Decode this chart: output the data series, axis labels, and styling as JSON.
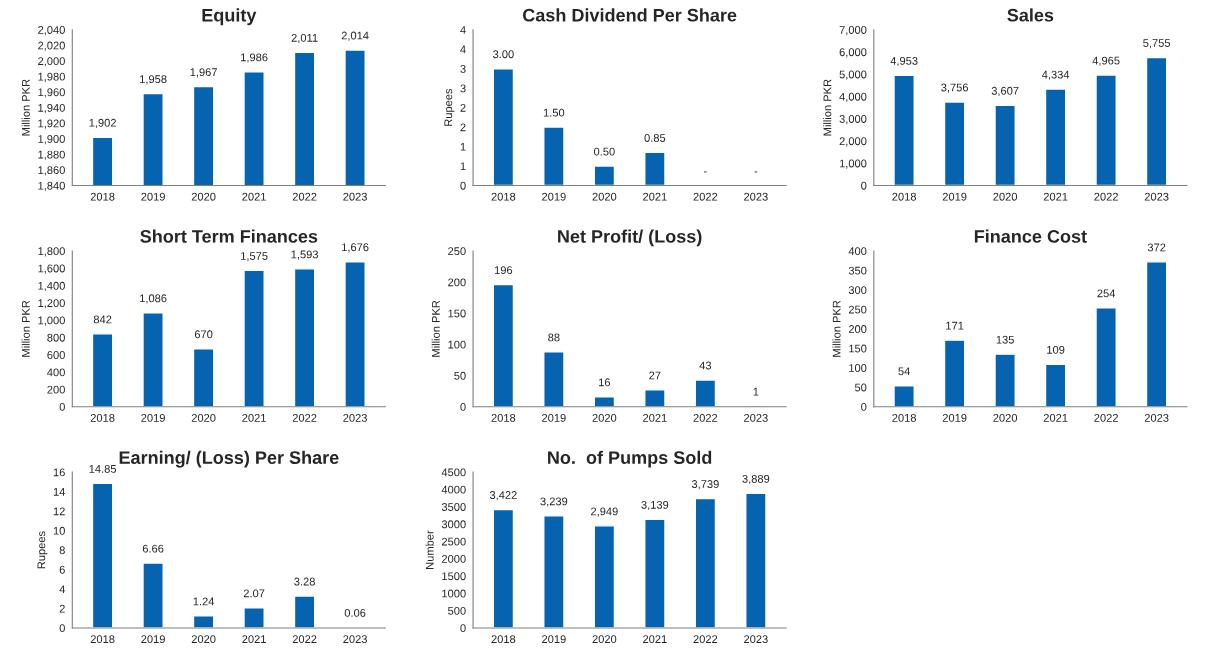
{
  "chart_data": [
    {
      "type": "bar",
      "title": "Equity",
      "ylabel": "Million PKR",
      "categories": [
        "2018",
        "2019",
        "2020",
        "2021",
        "2022",
        "2023"
      ],
      "values": [
        1902,
        1958,
        1967,
        1986,
        2011,
        2014
      ],
      "value_labels": [
        "1,902",
        "1,958",
        "1,967",
        "1,986",
        "2,011",
        "2,014"
      ],
      "color": "#0563b0",
      "ylim": [
        1840,
        2040
      ],
      "yticks": [
        {
          "value": 1840,
          "label": "1,840"
        },
        {
          "value": 1860,
          "label": "1,860"
        },
        {
          "value": 1880,
          "label": "1,880"
        },
        {
          "value": 1900,
          "label": "1,900"
        },
        {
          "value": 1920,
          "label": "1,920"
        },
        {
          "value": 1940,
          "label": "1,940"
        },
        {
          "value": 1960,
          "label": "1,960"
        },
        {
          "value": 1980,
          "label": "1,980"
        },
        {
          "value": 2000,
          "label": "2,000"
        },
        {
          "value": 2020,
          "label": "2,020"
        },
        {
          "value": 2040,
          "label": "2,040"
        }
      ],
      "grid": false,
      "legend": false
    },
    {
      "type": "bar",
      "title": "Cash Dividend Per Share",
      "ylabel": "Rupees",
      "categories": [
        "2018",
        "2019",
        "2020",
        "2021",
        "2022",
        "2023"
      ],
      "values": [
        3.0,
        1.5,
        0.5,
        0.85,
        null,
        null
      ],
      "value_labels": [
        "3.00",
        "1.50",
        "0.50",
        "0.85",
        "-",
        "-"
      ],
      "color": "#0563b0",
      "ylim": [
        0,
        4
      ],
      "yticks": [
        0,
        {
          "value": 0.5,
          "label": "1"
        },
        1,
        {
          "value": 1.5,
          "label": "2"
        },
        2,
        {
          "value": 2.5,
          "label": "3"
        },
        3,
        {
          "value": 3.5,
          "label": "4"
        },
        4
      ],
      "grid": false,
      "legend": false
    },
    {
      "type": "bar",
      "title": "Sales",
      "ylabel": "Million PKR",
      "categories": [
        "2018",
        "2019",
        "2020",
        "2021",
        "2022",
        "2023"
      ],
      "values": [
        4953,
        3756,
        3607,
        4334,
        4965,
        5755
      ],
      "value_labels": [
        "4,953",
        "3,756",
        "3,607",
        "4,334",
        "4,965",
        "5,755"
      ],
      "color": "#0563b0",
      "ylim": [
        0,
        7000
      ],
      "yticks": [
        0,
        {
          "value": 1000,
          "label": "1,000"
        },
        {
          "value": 2000,
          "label": "2,000"
        },
        {
          "value": 3000,
          "label": "3,000"
        },
        {
          "value": 4000,
          "label": "4,000"
        },
        {
          "value": 5000,
          "label": "5,000"
        },
        {
          "value": 6000,
          "label": "6,000"
        },
        {
          "value": 7000,
          "label": "7,000"
        }
      ],
      "grid": false,
      "legend": false
    },
    {
      "type": "bar",
      "title": "Short Term Finances",
      "ylabel": "Million PKR",
      "categories": [
        "2018",
        "2019",
        "2020",
        "2021",
        "2022",
        "2023"
      ],
      "values": [
        842,
        1086,
        670,
        1575,
        1593,
        1676
      ],
      "value_labels": [
        "842",
        "1,086",
        "670",
        "1,575",
        "1,593",
        "1,676"
      ],
      "color": "#0563b0",
      "ylim": [
        0,
        1800
      ],
      "yticks": [
        0,
        200,
        400,
        600,
        800,
        {
          "value": 1000,
          "label": "1,000"
        },
        {
          "value": 1200,
          "label": "1,200"
        },
        {
          "value": 1400,
          "label": "1,400"
        },
        {
          "value": 1600,
          "label": "1,600"
        },
        {
          "value": 1800,
          "label": "1,800"
        }
      ],
      "grid": false,
      "legend": false
    },
    {
      "type": "bar",
      "title": "Net Profit/ (Loss)",
      "ylabel": "Million PKR",
      "categories": [
        "2018",
        "2019",
        "2020",
        "2021",
        "2022",
        "2023"
      ],
      "values": [
        196,
        88,
        16,
        27,
        43,
        1
      ],
      "value_labels": [
        "196",
        "88",
        "16",
        "27",
        "43",
        "1"
      ],
      "color": "#0563b0",
      "ylim": [
        0,
        250
      ],
      "yticks": [
        0,
        50,
        100,
        150,
        200,
        250
      ],
      "grid": false,
      "legend": false
    },
    {
      "type": "bar",
      "title": "Finance Cost",
      "ylabel": "Million PKR",
      "categories": [
        "2018",
        "2019",
        "2020",
        "2021",
        "2022",
        "2023"
      ],
      "values": [
        54,
        171,
        135,
        109,
        254,
        372
      ],
      "value_labels": [
        "54",
        "171",
        "135",
        "109",
        "254",
        "372"
      ],
      "color": "#0563b0",
      "ylim": [
        0,
        400
      ],
      "yticks": [
        0,
        50,
        100,
        150,
        200,
        250,
        300,
        350,
        400
      ],
      "grid": false,
      "legend": false
    },
    {
      "type": "bar",
      "title": "Earning/ (Loss) Per Share",
      "ylabel": "Rupees",
      "categories": [
        "2018",
        "2019",
        "2020",
        "2021",
        "2022",
        "2023"
      ],
      "values": [
        14.85,
        6.66,
        1.24,
        2.07,
        3.28,
        0.06
      ],
      "value_labels": [
        "14.85",
        "6.66",
        "1.24",
        "2.07",
        "3.28",
        "0.06"
      ],
      "color": "#0563b0",
      "ylim": [
        0,
        16
      ],
      "yticks": [
        0,
        2,
        4,
        6,
        8,
        10,
        12,
        14,
        16
      ],
      "grid": false,
      "legend": false
    },
    {
      "type": "bar",
      "title": "No.  of Pumps Sold",
      "ylabel": "Number",
      "categories": [
        "2018",
        "2019",
        "2020",
        "2021",
        "2022",
        "2023"
      ],
      "values": [
        3422,
        3239,
        2949,
        3139,
        3739,
        3889
      ],
      "value_labels": [
        "3,422",
        "3,239",
        "2,949",
        "3,139",
        "3,739",
        "3,889"
      ],
      "color": "#0563b0",
      "ylim": [
        0,
        4500
      ],
      "yticks": [
        0,
        500,
        1000,
        1500,
        2000,
        2500,
        3000,
        3500,
        4000,
        4500
      ],
      "grid": false,
      "legend": false
    }
  ]
}
